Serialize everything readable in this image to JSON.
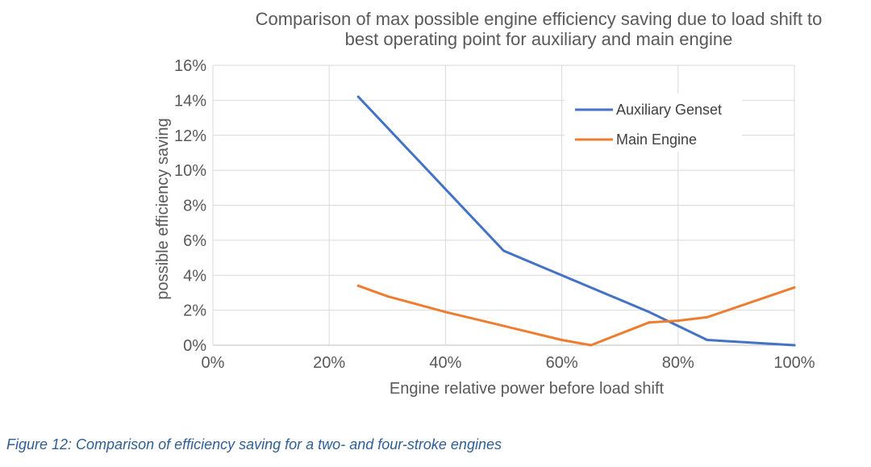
{
  "chart_data": {
    "type": "line",
    "title_lines": [
      "Comparison of max possible engine efficiency saving due to load shift to",
      "best operating point for auxiliary and main engine"
    ],
    "xlabel": "Engine relative power before load shift",
    "ylabel": "possible efficiency saving",
    "xlim": [
      0,
      100
    ],
    "ylim": [
      0,
      16
    ],
    "x_ticks": [
      0,
      20,
      40,
      60,
      80,
      100
    ],
    "x_tick_labels": [
      "0%",
      "20%",
      "40%",
      "60%",
      "80%",
      "100%"
    ],
    "y_ticks": [
      0,
      2,
      4,
      6,
      8,
      10,
      12,
      14,
      16
    ],
    "y_tick_labels": [
      "0%",
      "2%",
      "4%",
      "6%",
      "8%",
      "10%",
      "12%",
      "14%",
      "16%"
    ],
    "grid": true,
    "legend_position": "top-right",
    "series": [
      {
        "name": "Auxiliary Genset",
        "color": "#4472c4",
        "x": [
          25,
          50,
          75,
          85,
          100
        ],
        "y": [
          14.2,
          5.4,
          1.9,
          0.3,
          0.0
        ]
      },
      {
        "name": "Main Engine",
        "color": "#ed7d31",
        "x": [
          25,
          30,
          40,
          50,
          60,
          65,
          75,
          80,
          85,
          100
        ],
        "y": [
          3.4,
          2.8,
          1.9,
          1.1,
          0.3,
          0.0,
          1.3,
          1.4,
          1.6,
          3.3
        ]
      }
    ]
  },
  "caption": "Figure 12: Comparison of efficiency saving for a two- and four-stroke engines"
}
